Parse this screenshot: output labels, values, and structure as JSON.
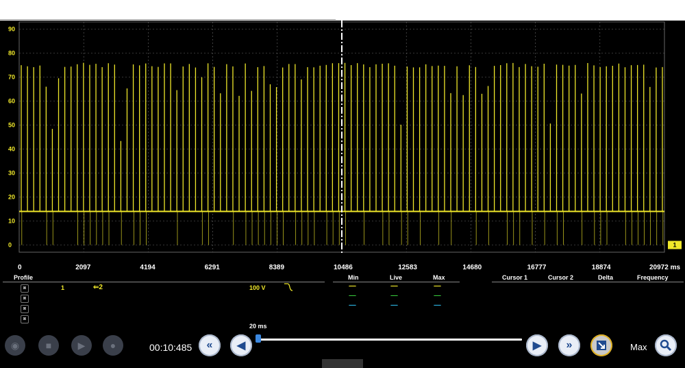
{
  "scope": {
    "y_ticks": [
      "90",
      "80",
      "70",
      "60",
      "50",
      "40",
      "30",
      "20",
      "10",
      "0"
    ],
    "y_range": [
      -3,
      93
    ],
    "x_ticks": [
      "0",
      "2097",
      "4194",
      "6291",
      "8389",
      "10486",
      "12583",
      "14680",
      "16777",
      "18874",
      "20972 ms"
    ],
    "x_range_ms": [
      0,
      20972
    ],
    "trigger_cursor_ms": 10486,
    "baseline_v": 14,
    "spike_peak_v": 75,
    "channel_marker": "1",
    "trace_color": "#f0e82a",
    "grid": true
  },
  "info": {
    "profile_label": "Profile",
    "channel_number": "1",
    "probe_label": "2",
    "voltage_scale": "100 V",
    "min_label": "Min",
    "live_label": "Live",
    "max_label": "Max",
    "cursor1_label": "Cursor 1",
    "cursor2_label": "Cursor 2",
    "delta_label": "Delta",
    "frequency_label": "Frequency",
    "readouts": [
      {
        "min": "-----",
        "live": "-----",
        "max": "-----",
        "color": "#f0e82a"
      },
      {
        "min": "-----",
        "live": "-----",
        "max": "-----",
        "color": "#35c23a"
      },
      {
        "min": "-----",
        "live": "-----",
        "max": "-----",
        "color": "#2bb3e0"
      }
    ]
  },
  "transport": {
    "clock": "00:10:485",
    "zoom_label": "20 ms",
    "max_label": "Max",
    "slider_position": 0.0
  }
}
